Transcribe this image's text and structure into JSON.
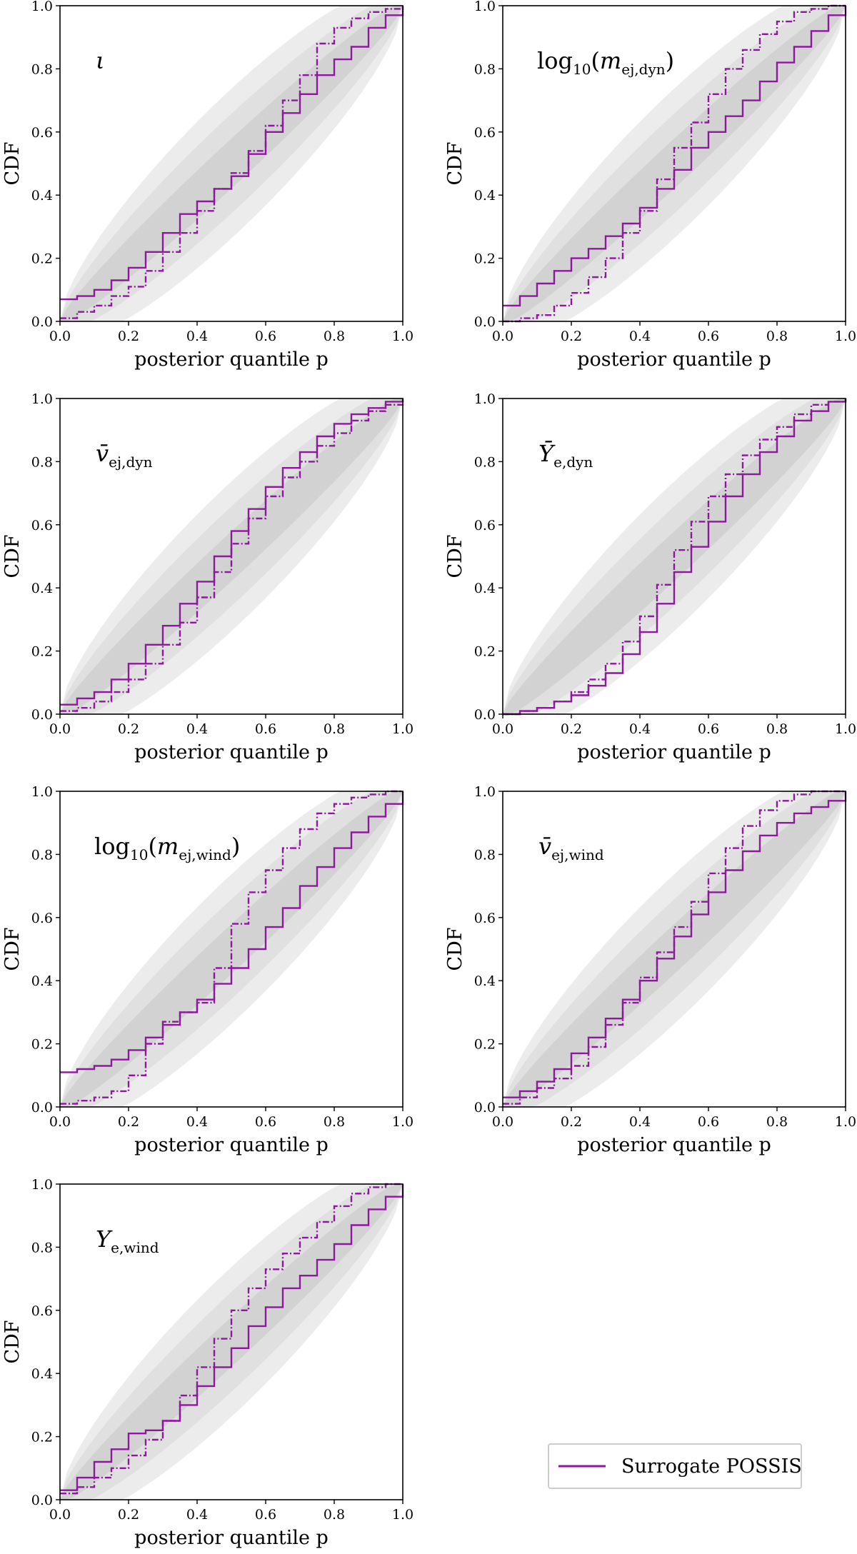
{
  "figure": {
    "xlabel": "posterior quantile p",
    "ylabel": "CDF",
    "legend": {
      "position": "bottom-right",
      "entries": [
        {
          "label": "Surrogate POSSIS",
          "color": "#8b1a9b"
        }
      ]
    }
  },
  "colors": {
    "series": "#8b1a9b",
    "band_outer": "#ececec",
    "band_mid": "#e0e0e0",
    "band_inner": "#d2d2d2"
  },
  "chart_data": [
    {
      "type": "line",
      "param": {
        "base": "ι",
        "sub": "",
        "wrap": "none"
      },
      "xlim": [
        0,
        1
      ],
      "ylim": [
        0,
        1
      ],
      "xticks": [
        "0.0",
        "0.2",
        "0.4",
        "0.6",
        "0.8",
        "1.0"
      ],
      "yticks": [
        "0.0",
        "0.2",
        "0.4",
        "0.6",
        "0.8",
        "1.0"
      ],
      "xlabel": "posterior quantile p",
      "ylabel": "CDF",
      "series": [
        {
          "style": "solid",
          "x": [
            0,
            0.05,
            0.1,
            0.15,
            0.2,
            0.25,
            0.3,
            0.35,
            0.4,
            0.45,
            0.5,
            0.55,
            0.6,
            0.65,
            0.7,
            0.75,
            0.8,
            0.85,
            0.9,
            0.95,
            1.0
          ],
          "y": [
            0.07,
            0.08,
            0.1,
            0.13,
            0.17,
            0.22,
            0.28,
            0.34,
            0.38,
            0.42,
            0.46,
            0.53,
            0.6,
            0.66,
            0.72,
            0.78,
            0.83,
            0.87,
            0.93,
            0.97,
            1.0
          ]
        },
        {
          "style": "dashed",
          "x": [
            0,
            0.05,
            0.1,
            0.15,
            0.2,
            0.25,
            0.3,
            0.35,
            0.4,
            0.45,
            0.5,
            0.55,
            0.6,
            0.65,
            0.7,
            0.75,
            0.8,
            0.85,
            0.9,
            0.95,
            1.0
          ],
          "y": [
            0.01,
            0.03,
            0.05,
            0.08,
            0.11,
            0.16,
            0.22,
            0.28,
            0.35,
            0.42,
            0.47,
            0.54,
            0.62,
            0.7,
            0.78,
            0.88,
            0.93,
            0.96,
            0.98,
            0.99,
            1.0
          ]
        }
      ]
    },
    {
      "type": "line",
      "param": {
        "base": "m",
        "sub": "ej,dyn",
        "wrap": "log10"
      },
      "xlim": [
        0,
        1
      ],
      "ylim": [
        0,
        1
      ],
      "xticks": [
        "0.0",
        "0.2",
        "0.4",
        "0.6",
        "0.8",
        "1.0"
      ],
      "yticks": [
        "0.0",
        "0.2",
        "0.4",
        "0.6",
        "0.8",
        "1.0"
      ],
      "xlabel": "posterior quantile p",
      "ylabel": "CDF",
      "series": [
        {
          "style": "solid",
          "x": [
            0,
            0.05,
            0.1,
            0.15,
            0.2,
            0.25,
            0.3,
            0.35,
            0.4,
            0.45,
            0.5,
            0.55,
            0.6,
            0.65,
            0.7,
            0.75,
            0.8,
            0.85,
            0.9,
            0.95,
            1.0
          ],
          "y": [
            0.05,
            0.08,
            0.12,
            0.16,
            0.2,
            0.23,
            0.27,
            0.31,
            0.36,
            0.42,
            0.48,
            0.55,
            0.6,
            0.65,
            0.7,
            0.76,
            0.82,
            0.87,
            0.92,
            0.97,
            1.0
          ]
        },
        {
          "style": "dashed",
          "x": [
            0,
            0.05,
            0.1,
            0.15,
            0.2,
            0.25,
            0.3,
            0.35,
            0.4,
            0.45,
            0.5,
            0.55,
            0.6,
            0.65,
            0.7,
            0.75,
            0.8,
            0.85,
            0.9,
            0.95,
            1.0
          ],
          "y": [
            0.0,
            0.01,
            0.02,
            0.05,
            0.09,
            0.14,
            0.2,
            0.28,
            0.35,
            0.45,
            0.55,
            0.63,
            0.72,
            0.8,
            0.86,
            0.91,
            0.95,
            0.98,
            0.99,
            1.0,
            1.0
          ]
        }
      ]
    },
    {
      "type": "line",
      "param": {
        "base": "v̄",
        "sub": "ej,dyn",
        "wrap": "none"
      },
      "xlim": [
        0,
        1
      ],
      "ylim": [
        0,
        1
      ],
      "xticks": [
        "0.0",
        "0.2",
        "0.4",
        "0.6",
        "0.8",
        "1.0"
      ],
      "yticks": [
        "0.0",
        "0.2",
        "0.4",
        "0.6",
        "0.8",
        "1.0"
      ],
      "xlabel": "posterior quantile p",
      "ylabel": "CDF",
      "series": [
        {
          "style": "solid",
          "x": [
            0,
            0.05,
            0.1,
            0.15,
            0.2,
            0.25,
            0.3,
            0.35,
            0.4,
            0.45,
            0.5,
            0.55,
            0.6,
            0.65,
            0.7,
            0.75,
            0.8,
            0.85,
            0.9,
            0.95,
            1.0
          ],
          "y": [
            0.03,
            0.05,
            0.07,
            0.11,
            0.16,
            0.22,
            0.28,
            0.35,
            0.42,
            0.5,
            0.58,
            0.65,
            0.72,
            0.78,
            0.83,
            0.88,
            0.92,
            0.95,
            0.97,
            0.99,
            1.0
          ]
        },
        {
          "style": "dashed",
          "x": [
            0,
            0.05,
            0.1,
            0.15,
            0.2,
            0.25,
            0.3,
            0.35,
            0.4,
            0.45,
            0.5,
            0.55,
            0.6,
            0.65,
            0.7,
            0.75,
            0.8,
            0.85,
            0.9,
            0.95,
            1.0
          ],
          "y": [
            0.01,
            0.02,
            0.04,
            0.07,
            0.11,
            0.16,
            0.22,
            0.29,
            0.37,
            0.45,
            0.54,
            0.62,
            0.69,
            0.75,
            0.8,
            0.85,
            0.89,
            0.93,
            0.96,
            0.98,
            1.0
          ]
        }
      ]
    },
    {
      "type": "line",
      "param": {
        "base": "Ȳ",
        "sub": "e,dyn",
        "wrap": "none"
      },
      "xlim": [
        0,
        1
      ],
      "ylim": [
        0,
        1
      ],
      "xticks": [
        "0.0",
        "0.2",
        "0.4",
        "0.6",
        "0.8",
        "1.0"
      ],
      "yticks": [
        "0.0",
        "0.2",
        "0.4",
        "0.6",
        "0.8",
        "1.0"
      ],
      "xlabel": "posterior quantile p",
      "ylabel": "CDF",
      "series": [
        {
          "style": "solid",
          "x": [
            0,
            0.05,
            0.1,
            0.15,
            0.2,
            0.25,
            0.3,
            0.35,
            0.4,
            0.45,
            0.5,
            0.55,
            0.6,
            0.65,
            0.7,
            0.75,
            0.8,
            0.85,
            0.9,
            0.95,
            1.0
          ],
          "y": [
            0.0,
            0.01,
            0.02,
            0.04,
            0.06,
            0.09,
            0.13,
            0.19,
            0.26,
            0.35,
            0.45,
            0.53,
            0.61,
            0.69,
            0.76,
            0.83,
            0.88,
            0.93,
            0.96,
            0.99,
            1.0
          ]
        },
        {
          "style": "dashed",
          "x": [
            0,
            0.05,
            0.1,
            0.15,
            0.2,
            0.25,
            0.3,
            0.35,
            0.4,
            0.45,
            0.5,
            0.55,
            0.6,
            0.65,
            0.7,
            0.75,
            0.8,
            0.85,
            0.9,
            0.95,
            1.0
          ],
          "y": [
            0.0,
            0.01,
            0.02,
            0.04,
            0.07,
            0.11,
            0.16,
            0.23,
            0.31,
            0.41,
            0.52,
            0.61,
            0.69,
            0.76,
            0.82,
            0.87,
            0.91,
            0.95,
            0.98,
            0.99,
            1.0
          ]
        }
      ]
    },
    {
      "type": "line",
      "param": {
        "base": "m",
        "sub": "ej,wind",
        "wrap": "log10"
      },
      "xlim": [
        0,
        1
      ],
      "ylim": [
        0,
        1
      ],
      "xticks": [
        "0.0",
        "0.2",
        "0.4",
        "0.6",
        "0.8",
        "1.0"
      ],
      "yticks": [
        "0.0",
        "0.2",
        "0.4",
        "0.6",
        "0.8",
        "1.0"
      ],
      "xlabel": "posterior quantile p",
      "ylabel": "CDF",
      "series": [
        {
          "style": "solid",
          "x": [
            0,
            0.05,
            0.1,
            0.15,
            0.2,
            0.25,
            0.3,
            0.35,
            0.4,
            0.45,
            0.5,
            0.55,
            0.6,
            0.65,
            0.7,
            0.75,
            0.8,
            0.85,
            0.9,
            0.95,
            1.0
          ],
          "y": [
            0.11,
            0.12,
            0.13,
            0.15,
            0.18,
            0.22,
            0.26,
            0.3,
            0.34,
            0.39,
            0.44,
            0.5,
            0.57,
            0.63,
            0.7,
            0.76,
            0.82,
            0.87,
            0.92,
            0.96,
            1.0
          ]
        },
        {
          "style": "dashed",
          "x": [
            0,
            0.05,
            0.1,
            0.15,
            0.2,
            0.25,
            0.3,
            0.35,
            0.4,
            0.45,
            0.5,
            0.55,
            0.6,
            0.65,
            0.7,
            0.75,
            0.8,
            0.85,
            0.9,
            0.95,
            1.0
          ],
          "y": [
            0.01,
            0.02,
            0.03,
            0.05,
            0.1,
            0.2,
            0.27,
            0.3,
            0.33,
            0.44,
            0.58,
            0.68,
            0.75,
            0.82,
            0.88,
            0.93,
            0.96,
            0.98,
            0.99,
            1.0,
            1.0
          ]
        }
      ]
    },
    {
      "type": "line",
      "param": {
        "base": "v̄",
        "sub": "ej,wind",
        "wrap": "none"
      },
      "xlim": [
        0,
        1
      ],
      "ylim": [
        0,
        1
      ],
      "xticks": [
        "0.0",
        "0.2",
        "0.4",
        "0.6",
        "0.8",
        "1.0"
      ],
      "yticks": [
        "0.0",
        "0.2",
        "0.4",
        "0.6",
        "0.8",
        "1.0"
      ],
      "xlabel": "posterior quantile p",
      "ylabel": "CDF",
      "series": [
        {
          "style": "solid",
          "x": [
            0,
            0.05,
            0.1,
            0.15,
            0.2,
            0.25,
            0.3,
            0.35,
            0.4,
            0.45,
            0.5,
            0.55,
            0.6,
            0.65,
            0.7,
            0.75,
            0.8,
            0.85,
            0.9,
            0.95,
            1.0
          ],
          "y": [
            0.03,
            0.05,
            0.08,
            0.12,
            0.17,
            0.22,
            0.28,
            0.34,
            0.4,
            0.47,
            0.54,
            0.61,
            0.68,
            0.75,
            0.81,
            0.86,
            0.9,
            0.93,
            0.95,
            0.97,
            1.0
          ]
        },
        {
          "style": "dashed",
          "x": [
            0,
            0.05,
            0.1,
            0.15,
            0.2,
            0.25,
            0.3,
            0.35,
            0.4,
            0.45,
            0.5,
            0.55,
            0.6,
            0.65,
            0.7,
            0.75,
            0.8,
            0.85,
            0.9,
            0.95,
            1.0
          ],
          "y": [
            0.01,
            0.03,
            0.06,
            0.09,
            0.13,
            0.19,
            0.26,
            0.33,
            0.41,
            0.49,
            0.57,
            0.65,
            0.74,
            0.82,
            0.89,
            0.94,
            0.97,
            0.99,
            1.0,
            1.0,
            1.0
          ]
        }
      ]
    },
    {
      "type": "line",
      "param": {
        "base": "Y",
        "sub": "e,wind",
        "wrap": "none"
      },
      "xlim": [
        0,
        1
      ],
      "ylim": [
        0,
        1
      ],
      "xticks": [
        "0.0",
        "0.2",
        "0.4",
        "0.6",
        "0.8",
        "1.0"
      ],
      "yticks": [
        "0.0",
        "0.2",
        "0.4",
        "0.6",
        "0.8",
        "1.0"
      ],
      "xlabel": "posterior quantile p",
      "ylabel": "CDF",
      "series": [
        {
          "style": "solid",
          "x": [
            0,
            0.05,
            0.1,
            0.15,
            0.2,
            0.25,
            0.3,
            0.35,
            0.4,
            0.45,
            0.5,
            0.55,
            0.6,
            0.65,
            0.7,
            0.75,
            0.8,
            0.85,
            0.9,
            0.95,
            1.0
          ],
          "y": [
            0.03,
            0.07,
            0.12,
            0.16,
            0.21,
            0.22,
            0.25,
            0.3,
            0.36,
            0.42,
            0.48,
            0.55,
            0.61,
            0.67,
            0.71,
            0.76,
            0.81,
            0.87,
            0.92,
            0.96,
            1.0
          ]
        },
        {
          "style": "dashed",
          "x": [
            0,
            0.05,
            0.1,
            0.15,
            0.2,
            0.25,
            0.3,
            0.35,
            0.4,
            0.45,
            0.5,
            0.55,
            0.6,
            0.65,
            0.7,
            0.75,
            0.8,
            0.85,
            0.9,
            0.95,
            1.0
          ],
          "y": [
            0.02,
            0.04,
            0.07,
            0.1,
            0.14,
            0.19,
            0.25,
            0.33,
            0.42,
            0.51,
            0.6,
            0.67,
            0.73,
            0.78,
            0.83,
            0.88,
            0.93,
            0.97,
            0.99,
            1.0,
            1.0
          ]
        }
      ]
    }
  ]
}
